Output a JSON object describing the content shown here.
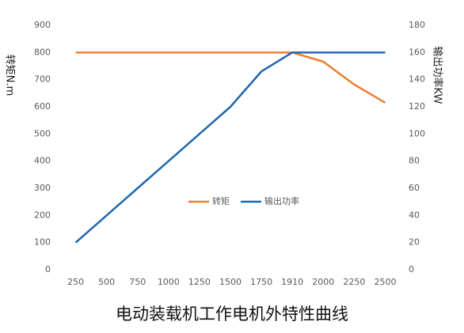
{
  "chart_data": {
    "type": "line",
    "title": "电动装载机工作电机外特性曲线",
    "y_label": "转矩N.m",
    "y2_label": "输出功率KW",
    "categories": [
      250,
      500,
      750,
      1000,
      1250,
      1500,
      1750,
      1910,
      2000,
      2250,
      2500
    ],
    "series": [
      {
        "name": "转矩",
        "color": "#ed7d31",
        "values": [
          800,
          800,
          800,
          800,
          800,
          800,
          800,
          800,
          766,
          682,
          615
        ]
      },
      {
        "name": "输出功率",
        "color": "#1f66b0",
        "axis": "y2",
        "values": [
          20,
          40,
          60,
          80,
          100,
          120,
          146,
          160,
          160,
          160,
          160
        ]
      }
    ],
    "ylim": [
      0,
      900
    ],
    "yticks": [
      0,
      100,
      200,
      300,
      400,
      500,
      600,
      700,
      800,
      900
    ],
    "y2lim": [
      0,
      180
    ],
    "y2ticks": [
      0,
      20,
      40,
      60,
      80,
      100,
      120,
      140,
      160,
      180
    ],
    "legend": "center"
  }
}
